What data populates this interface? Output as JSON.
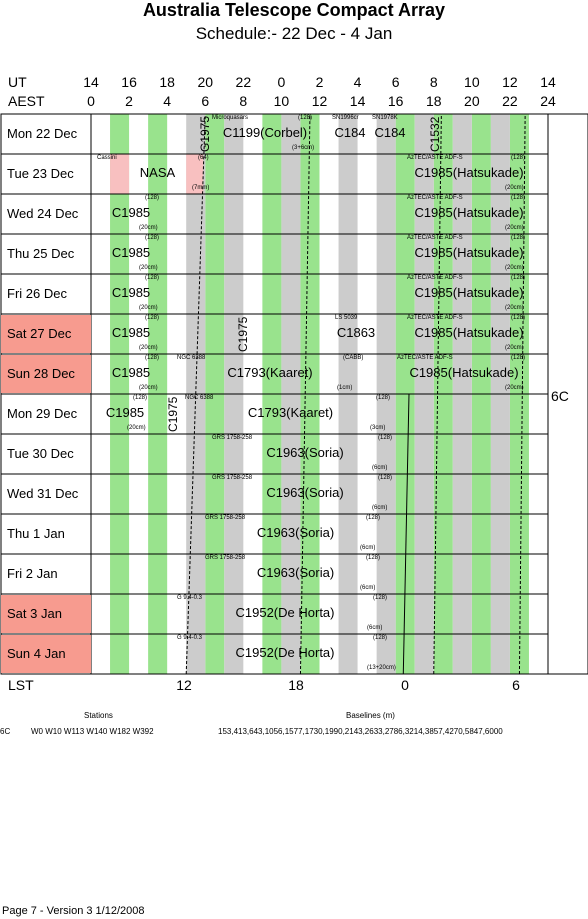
{
  "title": "Australia Telescope Compact Array",
  "subtitle": "Schedule:- 22 Dec - 4  Jan",
  "header": {
    "ut_label": "UT",
    "aest_label": "AEST",
    "ut_ticks": [
      "14",
      "16",
      "18",
      "20",
      "22",
      "0",
      "2",
      "4",
      "6",
      "8",
      "10",
      "12",
      "14"
    ],
    "aest_ticks": [
      "0",
      "2",
      "4",
      "6",
      "8",
      "10",
      "12",
      "14",
      "16",
      "18",
      "20",
      "22",
      "24"
    ]
  },
  "days": [
    {
      "label": "Mon  22 Dec",
      "weekend": false
    },
    {
      "label": "Tue  23 Dec",
      "weekend": false
    },
    {
      "label": "Wed  24 Dec",
      "weekend": false
    },
    {
      "label": "Thu  25 Dec",
      "weekend": false
    },
    {
      "label": "Fri   26 Dec",
      "weekend": false
    },
    {
      "label": "Sat  27 Dec",
      "weekend": true
    },
    {
      "label": "Sun  28 Dec",
      "weekend": true
    },
    {
      "label": "Mon  29 Dec",
      "weekend": false
    },
    {
      "label": "Tue   30 Dec",
      "weekend": false
    },
    {
      "label": "Wed  31 Dec",
      "weekend": false
    },
    {
      "label": "Thu    1  Jan",
      "weekend": false
    },
    {
      "label": "Fri     2  Jan",
      "weekend": false
    },
    {
      "label": "Sat    3  Jan",
      "weekend": true
    },
    {
      "label": "Sun    4  Jan",
      "weekend": true
    }
  ],
  "programs": [
    {
      "row": 0,
      "text": "G1975",
      "vertical": true
    },
    {
      "row": 0,
      "text": "C1199(Corbel)",
      "small_top": "Microquasars",
      "small_top2": "(128)",
      "small_bottom": "(3+6cm)"
    },
    {
      "row": 0,
      "text": "C184",
      "small_top": "SN1996cr"
    },
    {
      "row": 0,
      "text": "C184",
      "small_top": "SN1978K"
    },
    {
      "row": 0,
      "text": "C1532",
      "vertical": true
    },
    {
      "row": 1,
      "text": "NASA",
      "small_top": "Cassini",
      "small_top2": "(64)",
      "small_bottom": "(7mm)"
    },
    {
      "row": 1,
      "text": "C1985(Hatsukade)",
      "small_top": "AzTEC/ASTE ADF-S",
      "small_top2": "(128)",
      "small_bottom": "(20cm)"
    },
    {
      "row": 2,
      "text": "C1985",
      "small_top2": "(128)",
      "small_bottom": "(20cm)"
    },
    {
      "row": 2,
      "text": "C1985(Hatsukade)",
      "small_top": "AzTEC/ASTE ADF-S",
      "small_top2": "(128)",
      "small_bottom": "(20cm)"
    },
    {
      "row": 3,
      "text": "C1985",
      "small_top2": "(128)",
      "small_bottom": "(20cm)"
    },
    {
      "row": 3,
      "text": "C1985(Hatsukade)",
      "small_top": "AzTEC/ASTE ADF-S",
      "small_top2": "(128)",
      "small_bottom": "(20cm)"
    },
    {
      "row": 4,
      "text": "C1985",
      "small_top2": "(128)",
      "small_bottom": "(20cm)"
    },
    {
      "row": 4,
      "text": "C1985(Hatsukade)",
      "small_top": "AzTEC/ASTE ADF-S",
      "small_top2": "(128)",
      "small_bottom": "(20cm)"
    },
    {
      "row": 5,
      "text": "C1985",
      "small_top2": "(128)",
      "small_bottom": "(20cm)"
    },
    {
      "row": 5,
      "text": "C1975",
      "vertical": true
    },
    {
      "row": 5,
      "text": "C1863",
      "small_top": "LS 5039"
    },
    {
      "row": 5,
      "text": "C1985(Hatsukade)",
      "small_top": "AzTEC/ASTE ADF-S",
      "small_top2": "(128)",
      "small_bottom": "(20cm)"
    },
    {
      "row": 6,
      "text": "C1985",
      "small_top2": "(128)",
      "small_bottom": "(20cm)"
    },
    {
      "row": 6,
      "text": "C1793(Kaaret)",
      "small_top": "NGC 6388",
      "small_top2": "(CABB)",
      "small_bottom": "(1cm)"
    },
    {
      "row": 6,
      "text": "C1985(Hatsukade)",
      "small_top": "AzTEC/ASTE ADF-S",
      "small_top2": "(128)",
      "small_bottom": "(20cm)"
    },
    {
      "row": 7,
      "text": "C1985",
      "small_top2": "(128)",
      "small_bottom": "(20cm)"
    },
    {
      "row": 7,
      "text": "C1975",
      "vertical": true
    },
    {
      "row": 7,
      "text": "C1793(Kaaret)",
      "small_top": "NGC 6388",
      "small_top2": "(128)",
      "small_bottom": "(3cm)"
    },
    {
      "row": 8,
      "text": "C1963(Soria)",
      "small_top": "GRS 1758-258",
      "small_top2": "(128)",
      "small_bottom": "(6cm)"
    },
    {
      "row": 9,
      "text": "C1963(Soria)",
      "small_top": "GRS 1758-258",
      "small_top2": "(128)",
      "small_bottom": "(6cm)"
    },
    {
      "row": 10,
      "text": "C1963(Soria)",
      "small_top": "GRS 1758-258",
      "small_top2": "(128)",
      "small_bottom": "(6cm)"
    },
    {
      "row": 11,
      "text": "C1963(Soria)",
      "small_top": "GRS 1758-258",
      "small_top2": "(128)",
      "small_bottom": "(6cm)"
    },
    {
      "row": 12,
      "text": "C1952(De Horta)",
      "small_top": "G 9.4-0.3",
      "small_top2": "(128)",
      "small_bottom": "(6cm)"
    },
    {
      "row": 13,
      "text": "C1952(De Horta)",
      "small_top": "G 9.4-0.3",
      "small_top2": "(128)",
      "small_bottom": "(13+20cm)"
    }
  ],
  "config_label": "6C",
  "lst": {
    "label": "LST",
    "ticks": [
      "12",
      "18",
      "0",
      "6"
    ]
  },
  "footer": {
    "stations_header": "Stations",
    "baselines_header": "Baselines (m)",
    "config": "6C",
    "stations": "W0  W10  W113  W140  W182  W392",
    "baselines": "153,413,643,1056,1577,1730,1990,2143,2633,2786,3214,3857,4270,5847,6000"
  },
  "page_footer": "Page 7 - Version 3  1/12/2008",
  "colors": {
    "green": "#99e38d",
    "gray": "#cccccc",
    "pink": "#f8c0c0",
    "weekend": "#f79b8f"
  }
}
